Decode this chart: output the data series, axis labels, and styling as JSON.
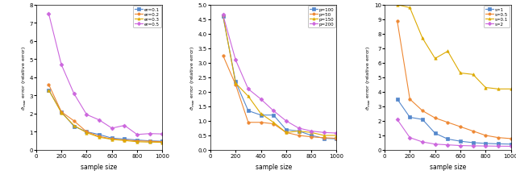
{
  "x": [
    100,
    200,
    300,
    400,
    500,
    600,
    700,
    800,
    900,
    1000
  ],
  "plot1": {
    "ylabel": "$\\hat{\\sigma}_{max}$ error (relative error)",
    "xlabel": "sample size",
    "ylim": [
      0,
      8
    ],
    "yticks": [
      0,
      1,
      2,
      3,
      4,
      5,
      6,
      7,
      8
    ],
    "series": [
      {
        "label": "er=0.1",
        "color": "#5588cc",
        "marker": "s",
        "data": [
          3.3,
          2.1,
          1.3,
          1.0,
          0.85,
          0.65,
          0.6,
          0.55,
          0.5,
          0.48
        ]
      },
      {
        "label": "er=0.2",
        "color": "#ee8833",
        "marker": "o",
        "data": [
          3.6,
          2.1,
          1.6,
          1.0,
          0.75,
          0.6,
          0.55,
          0.5,
          0.48,
          0.45
        ]
      },
      {
        "label": "er=0.3",
        "color": "#ddaa00",
        "marker": "^",
        "data": [
          3.3,
          2.05,
          1.35,
          0.95,
          0.7,
          0.58,
          0.52,
          0.45,
          0.43,
          0.42
        ]
      },
      {
        "label": "er=0.5",
        "color": "#cc66dd",
        "marker": "D",
        "data": [
          7.5,
          4.7,
          3.1,
          1.95,
          1.65,
          1.2,
          1.35,
          0.85,
          0.9,
          0.88
        ]
      }
    ]
  },
  "plot2": {
    "ylabel": "$\\hat{\\sigma}_{max}$ error (relative error)",
    "xlabel": "sample size",
    "ylim": [
      0,
      5
    ],
    "yticks": [
      0,
      0.5,
      1.0,
      1.5,
      2.0,
      2.5,
      3.0,
      3.5,
      4.0,
      4.5,
      5.0
    ],
    "series": [
      {
        "label": "p=100",
        "color": "#5588cc",
        "marker": "s",
        "data": [
          4.6,
          2.35,
          1.35,
          1.2,
          1.2,
          0.7,
          0.65,
          0.5,
          0.4,
          0.38
        ]
      },
      {
        "label": "p=50",
        "color": "#ee8833",
        "marker": "o",
        "data": [
          3.25,
          2.25,
          0.95,
          0.95,
          0.9,
          0.6,
          0.5,
          0.45,
          0.42,
          0.4
        ]
      },
      {
        "label": "p=150",
        "color": "#ddaa00",
        "marker": "^",
        "data": [
          4.65,
          2.3,
          1.85,
          1.25,
          0.95,
          0.6,
          0.65,
          0.6,
          0.5,
          0.5
        ]
      },
      {
        "label": "p=200",
        "color": "#cc66dd",
        "marker": "D",
        "data": [
          4.65,
          3.1,
          2.1,
          1.75,
          1.35,
          1.0,
          0.75,
          0.65,
          0.6,
          0.58
        ]
      }
    ]
  },
  "plot3": {
    "ylabel": "$\\hat{\\sigma}_{max}$ error (relative error)",
    "xlabel": "sample size",
    "ylim": [
      0,
      10
    ],
    "yticks": [
      0,
      1,
      2,
      3,
      4,
      5,
      6,
      7,
      8,
      9,
      10
    ],
    "series": [
      {
        "label": "s=1",
        "color": "#5588cc",
        "marker": "s",
        "data": [
          3.5,
          2.25,
          2.1,
          1.15,
          0.75,
          0.6,
          0.5,
          0.45,
          0.42,
          0.4
        ]
      },
      {
        "label": "s=0.5",
        "color": "#ee8833",
        "marker": "o",
        "data": [
          8.9,
          3.5,
          2.7,
          2.2,
          1.9,
          1.6,
          1.3,
          1.0,
          0.85,
          0.78
        ]
      },
      {
        "label": "s=0.1",
        "color": "#ddaa00",
        "marker": "^",
        "data": [
          10.0,
          9.8,
          7.7,
          6.3,
          6.8,
          5.3,
          5.2,
          4.3,
          4.2,
          4.2
        ]
      },
      {
        "label": "s=2",
        "color": "#cc66dd",
        "marker": "D",
        "data": [
          2.1,
          0.85,
          0.55,
          0.4,
          0.35,
          0.3,
          0.28,
          0.27,
          0.26,
          0.25
        ]
      }
    ]
  },
  "figsize": [
    6.4,
    2.28
  ],
  "dpi": 100
}
